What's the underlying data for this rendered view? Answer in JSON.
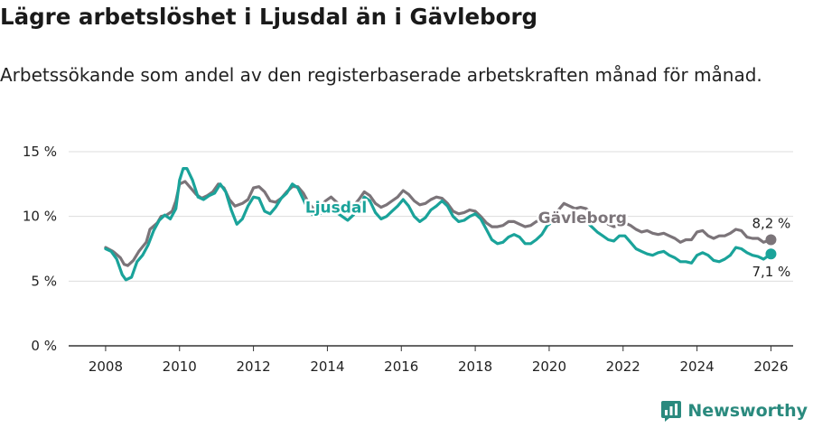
{
  "title": "Lägre arbetslöshet i Ljusdal än i Gävleborg",
  "subtitle": "Arbetssökande som andel av den registerbaserade arbetskraften månad för månad.",
  "brand": {
    "name": "Newsworthy"
  },
  "colors": {
    "ljusdal": "#1aa39a",
    "gavleborg": "#7b7479",
    "grid": "#dddddd",
    "axis": "#333333"
  },
  "chart_data": {
    "type": "line",
    "title": "Lägre arbetslöshet i Ljusdal än i Gävleborg",
    "xlabel": "",
    "ylabel": "",
    "xlim": [
      2007,
      2026.6
    ],
    "ylim": [
      0,
      15
    ],
    "x_ticks": [
      2008,
      2010,
      2012,
      2014,
      2016,
      2018,
      2020,
      2022,
      2024,
      2026
    ],
    "y_ticks": [
      0,
      5,
      10,
      15
    ],
    "y_tick_labels": [
      "0 %",
      "5 %",
      "10 %",
      "15 %"
    ],
    "series": [
      {
        "name": "Gävleborg",
        "end_label": "8,2 %",
        "points": [
          [
            2008.0,
            7.6
          ],
          [
            2008.2,
            7.3
          ],
          [
            2008.4,
            6.8
          ],
          [
            2008.5,
            6.3
          ],
          [
            2008.6,
            6.2
          ],
          [
            2008.75,
            6.6
          ],
          [
            2008.9,
            7.3
          ],
          [
            2009.1,
            8.0
          ],
          [
            2009.2,
            9.0
          ],
          [
            2009.4,
            9.5
          ],
          [
            2009.5,
            10.0
          ],
          [
            2009.65,
            10.1
          ],
          [
            2009.8,
            10.4
          ],
          [
            2009.9,
            11.2
          ],
          [
            2010.0,
            12.5
          ],
          [
            2010.15,
            12.7
          ],
          [
            2010.3,
            12.2
          ],
          [
            2010.45,
            11.7
          ],
          [
            2010.6,
            11.4
          ],
          [
            2010.75,
            11.6
          ],
          [
            2010.9,
            11.9
          ],
          [
            2011.05,
            12.5
          ],
          [
            2011.2,
            12.2
          ],
          [
            2011.35,
            11.3
          ],
          [
            2011.5,
            10.8
          ],
          [
            2011.7,
            11.0
          ],
          [
            2011.85,
            11.3
          ],
          [
            2012.0,
            12.2
          ],
          [
            2012.15,
            12.3
          ],
          [
            2012.3,
            11.9
          ],
          [
            2012.45,
            11.2
          ],
          [
            2012.6,
            11.1
          ],
          [
            2012.75,
            11.4
          ],
          [
            2012.9,
            11.9
          ],
          [
            2013.05,
            12.3
          ],
          [
            2013.2,
            12.3
          ],
          [
            2013.35,
            11.8
          ],
          [
            2013.5,
            11.0
          ],
          [
            2013.65,
            10.5
          ],
          [
            2013.8,
            10.7
          ],
          [
            2013.95,
            11.2
          ],
          [
            2014.1,
            11.5
          ],
          [
            2014.25,
            11.1
          ],
          [
            2014.4,
            10.6
          ],
          [
            2014.55,
            10.5
          ],
          [
            2014.7,
            10.8
          ],
          [
            2014.85,
            11.3
          ],
          [
            2015.0,
            11.9
          ],
          [
            2015.15,
            11.6
          ],
          [
            2015.3,
            11.0
          ],
          [
            2015.45,
            10.7
          ],
          [
            2015.6,
            10.9
          ],
          [
            2015.75,
            11.2
          ],
          [
            2015.9,
            11.5
          ],
          [
            2016.05,
            12.0
          ],
          [
            2016.2,
            11.7
          ],
          [
            2016.35,
            11.2
          ],
          [
            2016.5,
            10.9
          ],
          [
            2016.65,
            11.0
          ],
          [
            2016.8,
            11.3
          ],
          [
            2016.95,
            11.5
          ],
          [
            2017.1,
            11.4
          ],
          [
            2017.25,
            11.0
          ],
          [
            2017.4,
            10.4
          ],
          [
            2017.55,
            10.2
          ],
          [
            2017.7,
            10.3
          ],
          [
            2017.85,
            10.5
          ],
          [
            2018.0,
            10.4
          ],
          [
            2018.15,
            10.0
          ],
          [
            2018.3,
            9.5
          ],
          [
            2018.45,
            9.2
          ],
          [
            2018.6,
            9.2
          ],
          [
            2018.75,
            9.3
          ],
          [
            2018.9,
            9.6
          ],
          [
            2019.05,
            9.6
          ],
          [
            2019.2,
            9.4
          ],
          [
            2019.35,
            9.2
          ],
          [
            2019.5,
            9.3
          ],
          [
            2019.65,
            9.6
          ],
          [
            2019.8,
            9.8
          ],
          [
            2019.95,
            9.8
          ],
          [
            2020.1,
            10.0
          ],
          [
            2020.25,
            10.5
          ],
          [
            2020.4,
            11.0
          ],
          [
            2020.55,
            10.8
          ],
          [
            2020.7,
            10.6
          ],
          [
            2020.85,
            10.7
          ],
          [
            2021.0,
            10.6
          ],
          [
            2021.15,
            10.2
          ],
          [
            2021.3,
            9.9
          ],
          [
            2021.45,
            9.7
          ],
          [
            2021.6,
            9.4
          ],
          [
            2021.75,
            9.2
          ],
          [
            2021.9,
            9.3
          ],
          [
            2022.05,
            9.5
          ],
          [
            2022.2,
            9.3
          ],
          [
            2022.35,
            9.0
          ],
          [
            2022.5,
            8.8
          ],
          [
            2022.65,
            8.9
          ],
          [
            2022.8,
            8.7
          ],
          [
            2022.95,
            8.6
          ],
          [
            2023.1,
            8.7
          ],
          [
            2023.25,
            8.5
          ],
          [
            2023.4,
            8.3
          ],
          [
            2023.55,
            8.0
          ],
          [
            2023.7,
            8.2
          ],
          [
            2023.85,
            8.2
          ],
          [
            2024.0,
            8.8
          ],
          [
            2024.15,
            8.9
          ],
          [
            2024.3,
            8.5
          ],
          [
            2024.45,
            8.3
          ],
          [
            2024.6,
            8.5
          ],
          [
            2024.75,
            8.5
          ],
          [
            2024.9,
            8.7
          ],
          [
            2025.05,
            9.0
          ],
          [
            2025.2,
            8.9
          ],
          [
            2025.35,
            8.4
          ],
          [
            2025.5,
            8.3
          ],
          [
            2025.65,
            8.3
          ],
          [
            2025.8,
            8.0
          ],
          [
            2026.0,
            8.2
          ]
        ]
      },
      {
        "name": "Ljusdal",
        "end_label": "7,1 %",
        "points": [
          [
            2008.0,
            7.5
          ],
          [
            2008.15,
            7.3
          ],
          [
            2008.3,
            6.7
          ],
          [
            2008.45,
            5.5
          ],
          [
            2008.55,
            5.1
          ],
          [
            2008.7,
            5.3
          ],
          [
            2008.85,
            6.5
          ],
          [
            2009.0,
            7.0
          ],
          [
            2009.15,
            7.8
          ],
          [
            2009.3,
            8.9
          ],
          [
            2009.45,
            9.7
          ],
          [
            2009.6,
            10.1
          ],
          [
            2009.75,
            9.8
          ],
          [
            2009.9,
            10.6
          ],
          [
            2010.0,
            12.8
          ],
          [
            2010.1,
            13.7
          ],
          [
            2010.2,
            13.7
          ],
          [
            2010.35,
            12.8
          ],
          [
            2010.5,
            11.5
          ],
          [
            2010.65,
            11.3
          ],
          [
            2010.8,
            11.6
          ],
          [
            2010.95,
            11.8
          ],
          [
            2011.1,
            12.5
          ],
          [
            2011.25,
            11.9
          ],
          [
            2011.4,
            10.5
          ],
          [
            2011.55,
            9.4
          ],
          [
            2011.7,
            9.8
          ],
          [
            2011.85,
            10.8
          ],
          [
            2012.0,
            11.5
          ],
          [
            2012.15,
            11.4
          ],
          [
            2012.3,
            10.4
          ],
          [
            2012.45,
            10.2
          ],
          [
            2012.6,
            10.7
          ],
          [
            2012.75,
            11.4
          ],
          [
            2012.9,
            11.8
          ],
          [
            2013.05,
            12.5
          ],
          [
            2013.2,
            12.2
          ],
          [
            2013.35,
            11.3
          ],
          [
            2013.5,
            10.4
          ],
          [
            2013.65,
            10.0
          ],
          [
            2013.8,
            10.2
          ],
          [
            2013.95,
            10.5
          ],
          [
            2014.1,
            10.7
          ],
          [
            2014.25,
            10.3
          ],
          [
            2014.4,
            10.0
          ],
          [
            2014.55,
            9.7
          ],
          [
            2014.7,
            10.1
          ],
          [
            2014.85,
            10.7
          ],
          [
            2015.0,
            11.5
          ],
          [
            2015.15,
            11.2
          ],
          [
            2015.3,
            10.3
          ],
          [
            2015.45,
            9.8
          ],
          [
            2015.6,
            10.0
          ],
          [
            2015.75,
            10.4
          ],
          [
            2015.9,
            10.8
          ],
          [
            2016.05,
            11.3
          ],
          [
            2016.2,
            10.8
          ],
          [
            2016.35,
            10.0
          ],
          [
            2016.5,
            9.6
          ],
          [
            2016.65,
            9.9
          ],
          [
            2016.8,
            10.5
          ],
          [
            2016.95,
            10.8
          ],
          [
            2017.1,
            11.2
          ],
          [
            2017.25,
            10.8
          ],
          [
            2017.4,
            10.0
          ],
          [
            2017.55,
            9.6
          ],
          [
            2017.7,
            9.7
          ],
          [
            2017.85,
            10.0
          ],
          [
            2018.0,
            10.2
          ],
          [
            2018.15,
            9.8
          ],
          [
            2018.3,
            9.0
          ],
          [
            2018.45,
            8.2
          ],
          [
            2018.6,
            7.9
          ],
          [
            2018.75,
            8.0
          ],
          [
            2018.9,
            8.4
          ],
          [
            2019.05,
            8.6
          ],
          [
            2019.2,
            8.4
          ],
          [
            2019.35,
            7.9
          ],
          [
            2019.5,
            7.9
          ],
          [
            2019.65,
            8.2
          ],
          [
            2019.8,
            8.6
          ],
          [
            2019.95,
            9.3
          ],
          [
            2020.1,
            9.6
          ],
          [
            2020.25,
            9.9
          ],
          [
            2020.4,
            10.0
          ],
          [
            2020.55,
            10.2
          ],
          [
            2020.7,
            10.0
          ],
          [
            2020.85,
            9.8
          ],
          [
            2021.0,
            9.6
          ],
          [
            2021.15,
            9.2
          ],
          [
            2021.3,
            8.8
          ],
          [
            2021.45,
            8.5
          ],
          [
            2021.6,
            8.2
          ],
          [
            2021.75,
            8.1
          ],
          [
            2021.9,
            8.5
          ],
          [
            2022.05,
            8.5
          ],
          [
            2022.2,
            8.0
          ],
          [
            2022.35,
            7.5
          ],
          [
            2022.5,
            7.3
          ],
          [
            2022.65,
            7.1
          ],
          [
            2022.8,
            7.0
          ],
          [
            2022.95,
            7.2
          ],
          [
            2023.1,
            7.3
          ],
          [
            2023.25,
            7.0
          ],
          [
            2023.4,
            6.8
          ],
          [
            2023.55,
            6.5
          ],
          [
            2023.7,
            6.5
          ],
          [
            2023.85,
            6.4
          ],
          [
            2024.0,
            7.0
          ],
          [
            2024.15,
            7.2
          ],
          [
            2024.3,
            7.0
          ],
          [
            2024.45,
            6.6
          ],
          [
            2024.6,
            6.5
          ],
          [
            2024.75,
            6.7
          ],
          [
            2024.9,
            7.0
          ],
          [
            2025.05,
            7.6
          ],
          [
            2025.2,
            7.5
          ],
          [
            2025.35,
            7.2
          ],
          [
            2025.5,
            7.0
          ],
          [
            2025.65,
            6.9
          ],
          [
            2025.8,
            6.7
          ],
          [
            2026.0,
            7.1
          ]
        ]
      }
    ]
  }
}
